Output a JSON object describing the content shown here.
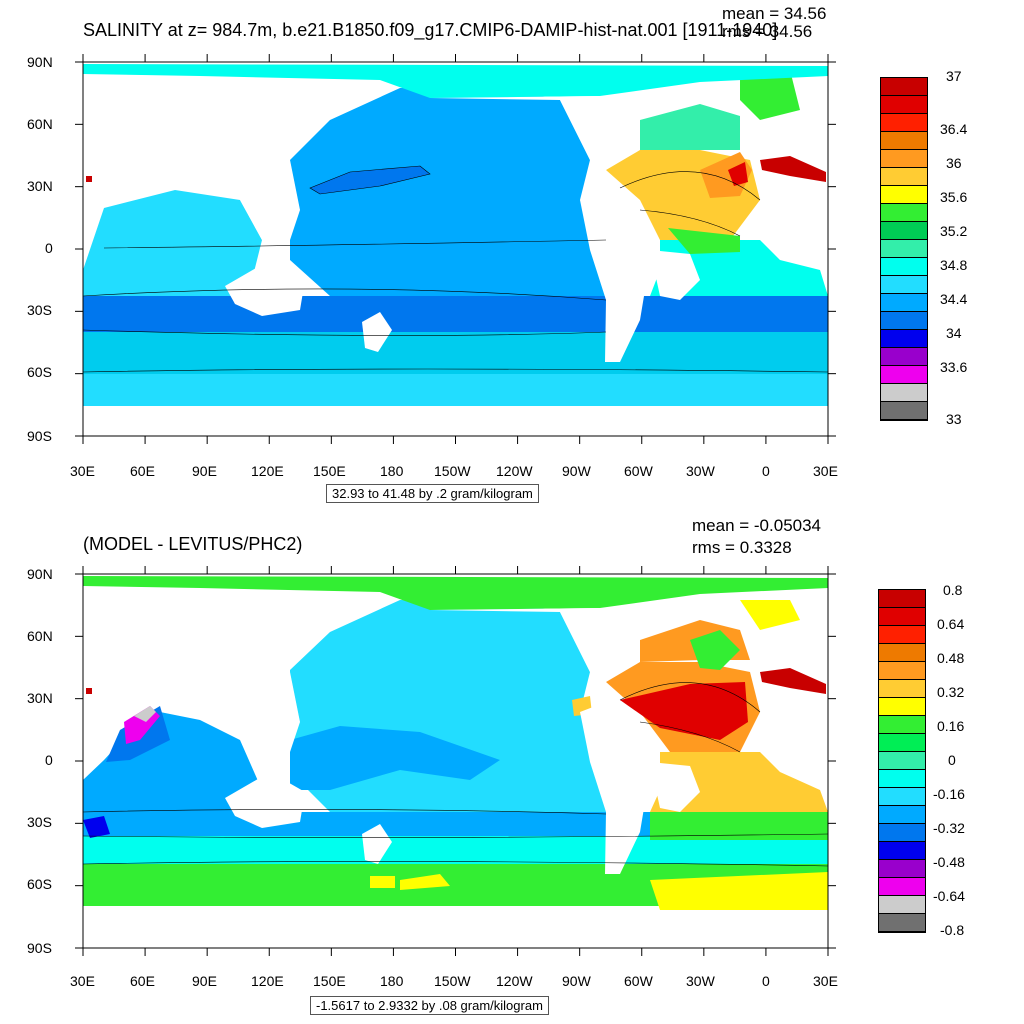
{
  "panels": [
    {
      "title": "SALINITY at z= 984.7m, b.e21.B1850.f09_g17.CMIP6-DAMIP-hist-nat.001 [1911-1940]",
      "mean_label": "mean = 34.56",
      "rms_label": "rms = 34.56",
      "lat_ticks": [
        "90N",
        "60N",
        "30N",
        "0",
        "30S",
        "60S",
        "90S"
      ],
      "lon_ticks": [
        "30E",
        "60E",
        "90E",
        "120E",
        "150E",
        "180",
        "150W",
        "120W",
        "90W",
        "60W",
        "30W",
        "0",
        "30E"
      ],
      "info": "32.93 to 41.48 by .2 gram/kilogram",
      "colorbar": {
        "labels": [
          "37",
          "36.4",
          "36",
          "35.6",
          "35.2",
          "34.8",
          "34.4",
          "34",
          "33.6",
          "33"
        ],
        "colors": [
          "#c80000",
          "#e00000",
          "#ff2000",
          "#ee7a00",
          "#ff9a20",
          "#ffcc33",
          "#ffff00",
          "#33ee33",
          "#00cc55",
          "#33eeaa",
          "#00ffee",
          "#22ddff",
          "#00aaff",
          "#0077ee",
          "#0000ee",
          "#9900cc",
          "#ee00ee",
          "#cccccc",
          "#707070"
        ]
      }
    },
    {
      "title": "(MODEL - LEVITUS/PHC2)",
      "mean_label": "mean = -0.05034",
      "rms_label": "rms = 0.3328",
      "lat_ticks": [
        "90N",
        "60N",
        "30N",
        "0",
        "30S",
        "60S",
        "90S"
      ],
      "lon_ticks": [
        "30E",
        "60E",
        "90E",
        "120E",
        "150E",
        "180",
        "150W",
        "120W",
        "90W",
        "60W",
        "30W",
        "0",
        "30E"
      ],
      "info": "-1.5617 to 2.9332 by .08 gram/kilogram",
      "colorbar": {
        "labels": [
          "0.8",
          "0.64",
          "0.48",
          "0.32",
          "0.16",
          "0",
          "-0.16",
          "-0.32",
          "-0.48",
          "-0.64",
          "-0.8"
        ],
        "colors": [
          "#c80000",
          "#e00000",
          "#ff2000",
          "#ee7a00",
          "#ff9a20",
          "#ffcc33",
          "#ffff00",
          "#33ee33",
          "#00ee55",
          "#33eeaa",
          "#00ffee",
          "#22ddff",
          "#00aaff",
          "#0077ee",
          "#0000ee",
          "#9900cc",
          "#ee00ee",
          "#cccccc",
          "#707070"
        ]
      }
    }
  ]
}
